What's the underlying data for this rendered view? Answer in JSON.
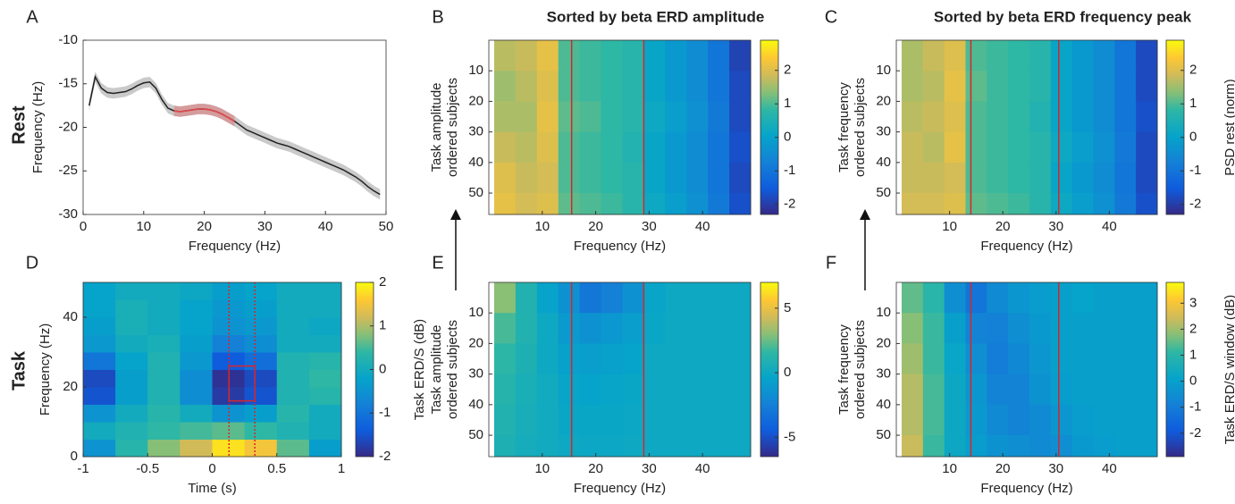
{
  "row_labels": [
    "Rest",
    "Task"
  ],
  "chart_data": [
    {
      "type": "line",
      "panel": "A",
      "xlabel": "Frequency (Hz)",
      "ylabel": "Frequency (Hz)",
      "x": [
        1,
        2,
        3,
        4,
        5,
        6,
        7,
        8,
        9,
        10,
        11,
        12,
        13,
        14,
        15,
        16,
        17,
        18,
        19,
        20,
        21,
        22,
        23,
        24,
        25,
        26,
        27,
        28,
        29,
        30,
        31,
        32,
        33,
        34,
        35,
        36,
        37,
        38,
        39,
        40,
        41,
        42,
        43,
        44,
        45,
        46,
        47,
        48,
        49
      ],
      "values": [
        -17.5,
        -14.2,
        -15.5,
        -16,
        -16.1,
        -16,
        -15.9,
        -15.6,
        -15.2,
        -14.9,
        -14.8,
        -15.5,
        -16.8,
        -17.8,
        -18.1,
        -18.2,
        -18.1,
        -18,
        -17.9,
        -17.9,
        -18,
        -18.2,
        -18.5,
        -18.9,
        -19.3,
        -19.8,
        -20.3,
        -20.6,
        -20.9,
        -21.2,
        -21.5,
        -21.8,
        -22,
        -22.2,
        -22.5,
        -22.8,
        -23.1,
        -23.4,
        -23.7,
        -24,
        -24.3,
        -24.6,
        -24.9,
        -25.3,
        -25.7,
        -26.2,
        -26.8,
        -27.3,
        -27.7
      ],
      "error": 0.6,
      "color": "#222222",
      "band_color": "#b3b3b3",
      "highlight": {
        "range": [
          15,
          25
        ],
        "color": "#e8474b"
      },
      "xlim": [
        0,
        50
      ],
      "xticks": [
        0,
        10,
        20,
        30,
        40,
        50
      ],
      "ylim": [
        -30,
        -10
      ],
      "yticks": [
        -30,
        -25,
        -20,
        -15,
        -10
      ]
    },
    {
      "type": "heatmap",
      "panel": "B",
      "title": "Sorted by beta ERD amplitude",
      "xlabel": "Frequency (Hz)",
      "ylabel": [
        "Task amplitude",
        "ordered subjects"
      ],
      "x": [
        1,
        5,
        9,
        13,
        17,
        21,
        25,
        29,
        33,
        37,
        41,
        45,
        49
      ],
      "y": [
        0,
        10,
        20,
        30,
        40,
        50,
        57
      ],
      "y_reversed": true,
      "z": [
        [
          1.7,
          1.8,
          2.1,
          1.0,
          0.9,
          0.8,
          0.7,
          0.1,
          -0.2,
          -0.5,
          -1.0,
          -1.9
        ],
        [
          1.5,
          1.7,
          2.0,
          1.0,
          0.9,
          0.8,
          0.7,
          0.1,
          -0.2,
          -0.5,
          -1.0,
          -1.8
        ],
        [
          1.6,
          1.6,
          2.1,
          1.1,
          1.0,
          0.8,
          0.7,
          0.2,
          -0.1,
          -0.4,
          -0.9,
          -1.8
        ],
        [
          1.8,
          1.7,
          2.0,
          1.0,
          0.9,
          0.8,
          0.6,
          0.1,
          -0.2,
          -0.5,
          -1.0,
          -1.7
        ],
        [
          2.0,
          1.8,
          1.9,
          1.0,
          0.9,
          0.8,
          0.7,
          0.1,
          -0.2,
          -0.5,
          -1.0,
          -1.8
        ],
        [
          2.1,
          1.9,
          2.0,
          1.1,
          1.0,
          0.9,
          0.7,
          0.2,
          -0.1,
          -0.4,
          -0.9,
          -1.7
        ]
      ],
      "vlines": [
        15.5,
        29
      ],
      "vline_color": "#d7262b",
      "colormap": "parula",
      "clim": [
        -2.3,
        2.9
      ],
      "cticks": [
        -2,
        -1,
        0,
        1,
        2
      ],
      "xlim": [
        0,
        49
      ],
      "xticks": [
        10,
        20,
        30,
        40
      ],
      "ylim": [
        0,
        57
      ],
      "yticks": [
        10,
        20,
        30,
        40,
        50
      ]
    },
    {
      "type": "heatmap",
      "panel": "C",
      "title": "Sorted by beta ERD frequency peak",
      "xlabel": "Frequency (Hz)",
      "ylabel": [
        "Task frequency",
        "ordered subjects"
      ],
      "clabel": "PSD rest (norm)",
      "x": [
        1,
        5,
        9,
        13,
        17,
        21,
        25,
        29,
        33,
        37,
        41,
        45,
        49
      ],
      "y": [
        0,
        10,
        20,
        30,
        40,
        50,
        57
      ],
      "y_reversed": true,
      "z": [
        [
          1.6,
          1.8,
          2.0,
          1.0,
          0.9,
          0.8,
          0.7,
          0.1,
          -0.2,
          -0.5,
          -1.0,
          -1.8
        ],
        [
          1.6,
          1.7,
          2.1,
          1.1,
          0.9,
          0.8,
          0.7,
          0.1,
          -0.2,
          -0.5,
          -1.0,
          -1.8
        ],
        [
          1.7,
          1.8,
          2.0,
          1.0,
          0.9,
          0.8,
          0.6,
          0.1,
          -0.2,
          -0.5,
          -1.0,
          -1.7
        ],
        [
          1.8,
          1.7,
          2.1,
          1.0,
          0.9,
          0.8,
          0.7,
          0.2,
          -0.1,
          -0.4,
          -0.9,
          -1.8
        ],
        [
          1.8,
          1.8,
          1.9,
          1.0,
          0.9,
          0.8,
          0.7,
          0.1,
          -0.2,
          -0.5,
          -1.0,
          -1.8
        ],
        [
          1.9,
          1.9,
          2.0,
          1.1,
          1.0,
          0.9,
          0.7,
          0.2,
          -0.1,
          -0.4,
          -0.9,
          -1.7
        ]
      ],
      "vlines": [
        14,
        30.5
      ],
      "vline_color": "#d7262b",
      "colormap": "parula",
      "clim": [
        -2.3,
        2.9
      ],
      "cticks": [
        -2,
        -1,
        0,
        1,
        2
      ],
      "xlim": [
        0,
        49
      ],
      "xticks": [
        10,
        20,
        30,
        40
      ],
      "ylim": [
        0,
        57
      ],
      "yticks": [
        10,
        20,
        30,
        40,
        50
      ]
    },
    {
      "type": "heatmap",
      "panel": "D",
      "xlabel": "Time (s)",
      "ylabel": [
        "Frequency (Hz)"
      ],
      "clabel": "Task ERD/S (dB)",
      "x": [
        -1,
        -0.75,
        -0.5,
        -0.25,
        0,
        0.25,
        0.5,
        0.75,
        1
      ],
      "y": [
        0,
        5,
        10,
        15,
        20,
        25,
        30,
        35,
        40,
        45,
        50
      ],
      "y_reversed": false,
      "z": [
        [
          -0.5,
          0.3,
          0.8,
          1.2,
          1.8,
          1.5,
          0.6,
          -0.3
        ],
        [
          0,
          0.2,
          0.4,
          0.5,
          0.6,
          0.4,
          0.2,
          0
        ],
        [
          -0.5,
          0,
          0.3,
          0,
          -0.5,
          -0.3,
          0.3,
          0
        ],
        [
          -1.5,
          -0.3,
          0.2,
          -0.6,
          -1.8,
          -1.5,
          0.2,
          0.3
        ],
        [
          -1.6,
          -0.3,
          0.2,
          -0.6,
          -1.9,
          -1.6,
          0.2,
          0.4
        ],
        [
          -1,
          -0.2,
          0.2,
          -0.4,
          -1.4,
          -1.1,
          0.2,
          0.3
        ],
        [
          -0.4,
          0,
          0.1,
          -0.3,
          -0.8,
          -0.6,
          0,
          0
        ],
        [
          -0.3,
          0.1,
          0,
          -0.2,
          -0.5,
          -0.4,
          0,
          -0.1
        ],
        [
          -0.2,
          0.1,
          0,
          -0.2,
          -0.4,
          -0.3,
          0,
          0
        ],
        [
          -0.2,
          0,
          0,
          -0.1,
          -0.3,
          -0.2,
          0,
          0
        ]
      ],
      "vlines": [
        0.13,
        0.33
      ],
      "vline_color": "#d7262b",
      "roi_box": {
        "x": [
          0.13,
          0.33
        ],
        "y": [
          16,
          26
        ]
      },
      "colormap": "parula",
      "clim": [
        -2,
        2
      ],
      "cticks": [
        -2,
        -1,
        0,
        1,
        2
      ],
      "xlim": [
        -1,
        1
      ],
      "xticks": [
        -1,
        -0.5,
        0,
        0.5,
        1
      ],
      "ylim": [
        0,
        50
      ],
      "yticks": [
        0,
        20,
        40
      ]
    },
    {
      "type": "heatmap",
      "panel": "E",
      "xlabel": "Frequency (Hz)",
      "ylabel": [
        "Task amplitude",
        "ordered subjects"
      ],
      "x": [
        1,
        5,
        9,
        13,
        17,
        21,
        25,
        29,
        33,
        37,
        41,
        45,
        49
      ],
      "y": [
        0,
        10,
        20,
        30,
        40,
        50,
        57
      ],
      "y_reversed": true,
      "z": [
        [
          3,
          1,
          -0.5,
          -1.5,
          -3,
          -2.5,
          -1.5,
          -0.3,
          0,
          0,
          0,
          0
        ],
        [
          2,
          1,
          0,
          -1,
          -1.5,
          -1.2,
          -0.8,
          -0.2,
          0,
          0,
          0,
          0
        ],
        [
          1.5,
          0.8,
          0,
          -0.6,
          -0.8,
          -0.6,
          -0.4,
          0,
          0,
          0,
          0,
          0
        ],
        [
          1.2,
          0.6,
          0.2,
          -0.3,
          -0.4,
          -0.3,
          -0.2,
          0,
          0,
          0,
          0,
          0
        ],
        [
          1,
          0.5,
          0.2,
          -0.2,
          -0.2,
          -0.2,
          -0.1,
          0,
          0,
          0,
          0,
          0
        ],
        [
          0.8,
          0.4,
          0.2,
          0,
          -0.1,
          -0.1,
          0,
          0,
          0,
          0,
          0,
          0
        ]
      ],
      "vlines": [
        15.5,
        29
      ],
      "vline_color": "#d7262b",
      "colormap": "parula",
      "clim": [
        -6.5,
        7
      ],
      "cticks": [
        -5,
        0,
        5
      ],
      "xlim": [
        0,
        49
      ],
      "xticks": [
        10,
        20,
        30,
        40
      ],
      "ylim": [
        0,
        57
      ],
      "yticks": [
        10,
        20,
        30,
        40,
        50
      ]
    },
    {
      "type": "heatmap",
      "panel": "F",
      "xlabel": "Frequency (Hz)",
      "ylabel": [
        "Task frequency",
        "ordered subjects"
      ],
      "clabel": "Task ERD/S window (dB)",
      "x": [
        1,
        5,
        9,
        13,
        17,
        21,
        25,
        29,
        33,
        37,
        41,
        45,
        49
      ],
      "y": [
        0,
        10,
        20,
        30,
        40,
        50,
        57
      ],
      "y_reversed": true,
      "z": [
        [
          1.5,
          1,
          -0.5,
          -1.2,
          -0.6,
          -0.3,
          -0.1,
          0,
          0.1,
          0,
          0,
          0
        ],
        [
          1.8,
          1.2,
          0,
          -0.8,
          -0.9,
          -0.5,
          -0.2,
          0,
          0,
          0,
          0,
          0
        ],
        [
          2,
          1.2,
          0.2,
          -0.5,
          -1,
          -0.7,
          -0.3,
          0,
          0,
          0,
          0,
          0
        ],
        [
          2.2,
          1.3,
          0.3,
          -0.3,
          -0.8,
          -0.8,
          -0.4,
          -0.1,
          0,
          0,
          0,
          0
        ],
        [
          2.2,
          1.3,
          0.3,
          -0.2,
          -0.6,
          -0.8,
          -0.6,
          -0.3,
          -0.1,
          0,
          0,
          0
        ],
        [
          2.4,
          1.2,
          0.3,
          -0.1,
          -0.4,
          -0.5,
          -0.6,
          -0.5,
          -0.2,
          -0.1,
          0,
          0
        ]
      ],
      "vlines": [
        14,
        30.5
      ],
      "vline_color": "#d7262b",
      "colormap": "parula",
      "clim": [
        -2.9,
        3.8
      ],
      "cticks": [
        -2,
        -1,
        0,
        1,
        2,
        3
      ],
      "xlim": [
        0,
        49
      ],
      "xticks": [
        10,
        20,
        30,
        40
      ],
      "ylim": [
        0,
        57
      ],
      "yticks": [
        10,
        20,
        30,
        40,
        50
      ]
    }
  ]
}
